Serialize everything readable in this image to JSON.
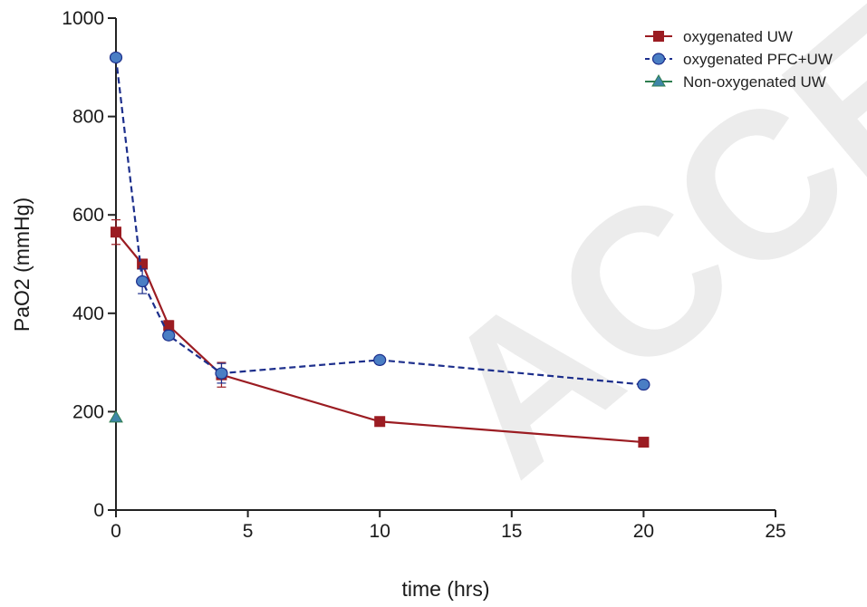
{
  "watermark": "ACCEPTED",
  "chart_data": {
    "type": "line",
    "xlabel": "time (hrs)",
    "ylabel": "PaO2 (mmHg)",
    "xlim": [
      0,
      25
    ],
    "ylim": [
      0,
      1000
    ],
    "xticks": [
      0,
      5,
      10,
      15,
      20,
      25
    ],
    "yticks": [
      0,
      200,
      400,
      600,
      800,
      1000
    ],
    "grid": false,
    "legend_position": "top-right",
    "series": [
      {
        "name": "oxygenated UW",
        "color": "#9b1c22",
        "line_style": "solid",
        "marker": "square",
        "x": [
          0,
          1,
          2,
          4,
          10,
          20
        ],
        "y": [
          565,
          500,
          375,
          275,
          180,
          138
        ],
        "err": [
          25,
          10,
          10,
          25,
          5,
          5
        ]
      },
      {
        "name": "oxygenated PFC+UW",
        "color": "#1d2f8c",
        "marker_color": "#4a7ec4",
        "line_style": "dashed",
        "marker": "circle",
        "x": [
          0,
          1,
          2,
          4,
          10,
          20
        ],
        "y": [
          920,
          465,
          355,
          278,
          305,
          255
        ],
        "err": [
          5,
          25,
          8,
          20,
          5,
          5
        ]
      },
      {
        "name": "Non-oxygenated UW",
        "color": "#2e7d4f",
        "marker_color": "#3f86a8",
        "line_style": "solid",
        "marker": "triangle",
        "x": [
          0
        ],
        "y": [
          188
        ],
        "err": [
          0
        ]
      }
    ]
  }
}
